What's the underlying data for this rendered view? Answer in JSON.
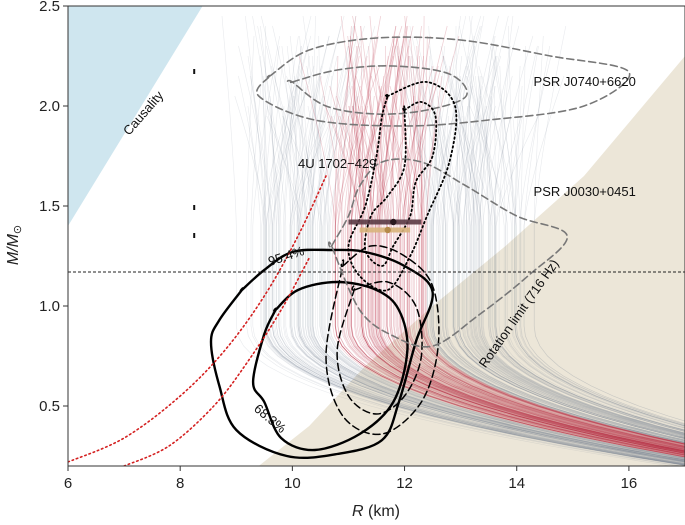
{
  "chart_data": {
    "type": "scatter",
    "title": "",
    "xlabel_main": "R",
    "xlabel_unit": " (km)",
    "ylabel_main": "M/M",
    "ylabel_sub": "⊙",
    "xlim": [
      6,
      17
    ],
    "ylim": [
      0.2,
      2.5
    ],
    "x_ticks": [
      6,
      8,
      10,
      12,
      14,
      16
    ],
    "y_ticks": [
      0.5,
      1.0,
      1.5,
      2.0,
      2.5
    ],
    "x_tick_labels": [
      "6",
      "8",
      "10",
      "12",
      "14",
      "16"
    ],
    "y_tick_labels": [
      "0.5",
      "1.0",
      "1.5",
      "2.0",
      "2.5"
    ],
    "colors": {
      "causality": "#cfe6ef",
      "rotation": "#ece6d8",
      "eos_grey": "#6d7f8c",
      "eos_red": "#b4283f",
      "contour": "#000000",
      "contour_gray": "#777777",
      "red_dotted": "#d42020",
      "bar_dark": "#5a3a44",
      "bar_gold": "#d8b47c"
    },
    "regions": [
      {
        "name": "Causality",
        "label": "Causality",
        "x": [
          6,
          6,
          8.4
        ],
        "y": [
          1.4,
          2.5,
          2.5
        ]
      },
      {
        "name": "Rotation limit (716 Hz)",
        "label": "Rotation limit (716 Hz)",
        "x": [
          7.4,
          8.4,
          9.4,
          10.3,
          11.3,
          12.5,
          13.8,
          15.2,
          17,
          17
        ],
        "y": [
          0.2,
          0.2,
          0.2,
          0.4,
          0.7,
          1.0,
          1.3,
          1.65,
          2.25,
          0.2
        ]
      }
    ],
    "reference_line": {
      "y": 1.17,
      "style": "dashed"
    },
    "annotations": [
      {
        "text": "PSR J0740+6620",
        "x": 14.3,
        "y": 2.1
      },
      {
        "text": "PSR J0030+0451",
        "x": 14.3,
        "y": 1.55
      },
      {
        "text": "4U 1702−429",
        "x": 10.1,
        "y": 1.69
      },
      {
        "text": "95.4%",
        "x": 9.6,
        "y": 1.2
      },
      {
        "text": "68.3%",
        "x": 9.3,
        "y": 0.48
      }
    ],
    "bars": [
      {
        "name": "dark",
        "x_range": [
          11.0,
          12.3
        ],
        "y": 1.42
      },
      {
        "name": "gold",
        "x_range": [
          11.2,
          12.1
        ],
        "y": 1.38
      }
    ],
    "bar_points": [
      {
        "x": 11.8,
        "y": 1.42
      },
      {
        "x": 11.7,
        "y": 1.38
      }
    ],
    "markers": [
      {
        "x": 8.25,
        "y": 2.17
      },
      {
        "x": 8.25,
        "y": 1.49
      },
      {
        "x": 8.25,
        "y": 1.35
      }
    ],
    "contours": {
      "u4_68": [
        [
          9.7,
          0.98
        ],
        [
          10.1,
          1.08
        ],
        [
          10.8,
          1.12
        ],
        [
          11.5,
          1.08
        ],
        [
          11.9,
          0.98
        ],
        [
          12.05,
          0.78
        ],
        [
          11.8,
          0.52
        ],
        [
          11.2,
          0.36
        ],
        [
          10.4,
          0.28
        ],
        [
          9.8,
          0.34
        ],
        [
          9.5,
          0.52
        ],
        [
          9.3,
          0.62
        ],
        [
          9.5,
          0.86
        ],
        [
          9.7,
          0.98
        ]
      ],
      "u4_95": [
        [
          9.1,
          1.08
        ],
        [
          9.5,
          1.18
        ],
        [
          10.0,
          1.27
        ],
        [
          10.7,
          1.28
        ],
        [
          11.3,
          1.27
        ],
        [
          12.0,
          1.2
        ],
        [
          12.5,
          1.07
        ],
        [
          12.2,
          0.82
        ],
        [
          11.9,
          0.52
        ],
        [
          11.6,
          0.33
        ],
        [
          10.8,
          0.26
        ],
        [
          9.9,
          0.25
        ],
        [
          9.0,
          0.38
        ],
        [
          8.7,
          0.6
        ],
        [
          8.55,
          0.82
        ],
        [
          8.7,
          0.93
        ],
        [
          9.1,
          1.08
        ]
      ],
      "j0030_68": [
        [
          11.1,
          1.08
        ],
        [
          11.7,
          1.12
        ],
        [
          12.2,
          1.0
        ],
        [
          12.3,
          0.75
        ],
        [
          12.0,
          0.55
        ],
        [
          11.5,
          0.46
        ],
        [
          11.0,
          0.55
        ],
        [
          10.8,
          0.78
        ],
        [
          11.1,
          1.08
        ]
      ],
      "j0030_95": [
        [
          10.9,
          1.2
        ],
        [
          11.4,
          1.3
        ],
        [
          12.0,
          1.25
        ],
        [
          12.5,
          1.1
        ],
        [
          12.6,
          0.8
        ],
        [
          12.3,
          0.52
        ],
        [
          11.6,
          0.36
        ],
        [
          10.9,
          0.45
        ],
        [
          10.6,
          0.75
        ],
        [
          10.9,
          1.2
        ]
      ],
      "j0030_outer": [
        [
          10.7,
          1.3
        ],
        [
          11.0,
          1.45
        ],
        [
          11.2,
          1.6
        ],
        [
          11.6,
          1.72
        ],
        [
          12.3,
          1.72
        ],
        [
          13.1,
          1.6
        ],
        [
          14.0,
          1.45
        ],
        [
          14.9,
          1.35
        ],
        [
          14.2,
          1.15
        ],
        [
          13.3,
          0.95
        ],
        [
          12.5,
          0.8
        ],
        [
          11.8,
          0.85
        ],
        [
          11.2,
          0.98
        ],
        [
          10.7,
          1.3
        ]
      ],
      "j0740_inner": [
        [
          10.0,
          2.12
        ],
        [
          10.8,
          2.18
        ],
        [
          11.8,
          2.2
        ],
        [
          12.8,
          2.16
        ],
        [
          13.1,
          2.05
        ],
        [
          12.4,
          1.98
        ],
        [
          11.5,
          1.96
        ],
        [
          10.6,
          2.0
        ],
        [
          10.0,
          2.12
        ]
      ],
      "j0740_outer": [
        [
          9.6,
          2.15
        ],
        [
          10.3,
          2.28
        ],
        [
          11.5,
          2.34
        ],
        [
          13.0,
          2.33
        ],
        [
          14.6,
          2.25
        ],
        [
          16.0,
          2.17
        ],
        [
          15.2,
          2.0
        ],
        [
          13.5,
          1.93
        ],
        [
          12.0,
          1.9
        ],
        [
          10.4,
          1.93
        ],
        [
          9.4,
          2.05
        ],
        [
          9.6,
          2.15
        ]
      ],
      "dotted_inner": [
        [
          12.0,
          1.98
        ],
        [
          12.3,
          2.02
        ],
        [
          12.55,
          1.95
        ],
        [
          12.5,
          1.75
        ],
        [
          12.2,
          1.62
        ],
        [
          12.1,
          1.45
        ],
        [
          11.8,
          1.3
        ],
        [
          11.6,
          1.2
        ],
        [
          11.3,
          1.28
        ],
        [
          11.4,
          1.45
        ],
        [
          11.7,
          1.55
        ],
        [
          12.0,
          1.7
        ],
        [
          12.0,
          1.98
        ]
      ],
      "dotted_outer": [
        [
          11.7,
          2.05
        ],
        [
          12.4,
          2.12
        ],
        [
          12.9,
          2.0
        ],
        [
          12.8,
          1.72
        ],
        [
          12.4,
          1.45
        ],
        [
          12.1,
          1.25
        ],
        [
          11.7,
          1.08
        ],
        [
          11.2,
          1.15
        ],
        [
          11.0,
          1.3
        ],
        [
          11.3,
          1.5
        ],
        [
          11.5,
          1.75
        ],
        [
          11.6,
          1.95
        ],
        [
          11.7,
          2.05
        ]
      ]
    },
    "red_dotted_curves": [
      [
        [
          6.0,
          0.22
        ],
        [
          7.0,
          0.34
        ],
        [
          8.0,
          0.55
        ],
        [
          8.8,
          0.78
        ],
        [
          9.5,
          1.05
        ],
        [
          10.1,
          1.35
        ],
        [
          10.6,
          1.65
        ]
      ],
      [
        [
          7.0,
          0.2
        ],
        [
          7.8,
          0.3
        ],
        [
          8.6,
          0.5
        ],
        [
          9.2,
          0.72
        ],
        [
          9.8,
          0.98
        ],
        [
          10.3,
          1.24
        ]
      ]
    ]
  }
}
